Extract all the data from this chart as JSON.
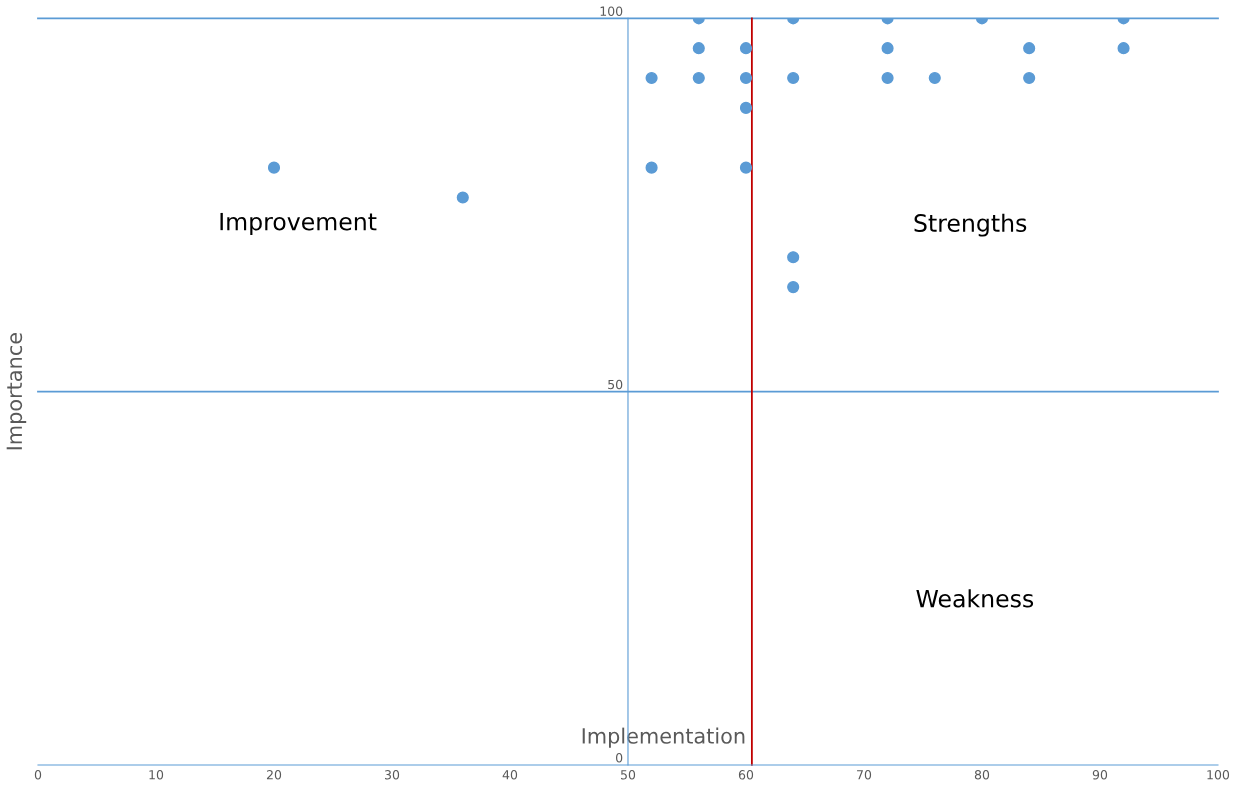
{
  "chart_data": {
    "type": "scatter",
    "xlabel": "Implementation",
    "ylabel": "Importance",
    "annotations": [
      "Improvement",
      "Strengths",
      "Weakness"
    ],
    "series": [
      {
        "color": "#5b9bd5",
        "x": [
          20,
          36,
          52,
          52,
          56,
          56,
          56,
          60,
          60,
          60,
          60,
          64,
          64,
          64,
          64,
          72,
          72,
          72,
          76,
          80,
          84,
          84,
          92,
          92
        ],
        "values": [
          80,
          76,
          92,
          80,
          100,
          96,
          92,
          96,
          92,
          88,
          80,
          100,
          92,
          68,
          64,
          100,
          96,
          92,
          92,
          100,
          96,
          92,
          100,
          96
        ]
      }
    ],
    "xlim": [
      0,
      100
    ],
    "ylim": [
      0,
      100
    ],
    "xticks": [
      0,
      10,
      20,
      30,
      40,
      50,
      60,
      70,
      80,
      90,
      100
    ],
    "yticks": [
      0,
      50,
      100
    ],
    "marker": "circle",
    "legend": false,
    "ref_lines": [
      {
        "axis": "y",
        "value": 50,
        "color": "#5b9bd5"
      },
      {
        "axis": "y",
        "value": 100,
        "color": "#5b9bd5"
      },
      {
        "axis": "x",
        "value": 60.5,
        "color": "#c00000"
      }
    ]
  }
}
